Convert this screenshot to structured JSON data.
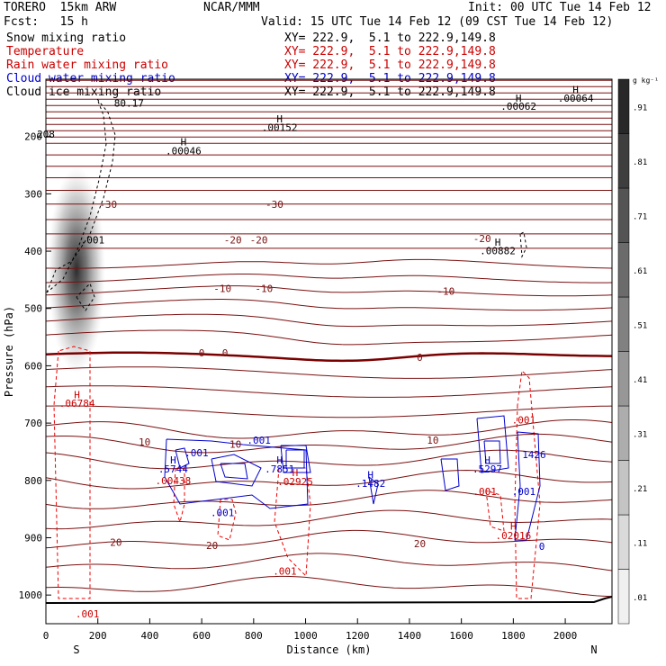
{
  "header": {
    "model": "TORERO  15km ARW",
    "org": "NCAR/MMM",
    "init": "Init: 00 UTC Tue 14 Feb 12",
    "fcst": "Fcst:   15 h",
    "valid": "Valid: 15 UTC Tue 14 Feb 12 (09 CST Tue 14 Feb 12)"
  },
  "legend": {
    "items": [
      {
        "label": "Snow mixing ratio",
        "xy": "XY= 222.9,  5.1 to 222.9,149.8",
        "color": "#000000"
      },
      {
        "label": "Temperature",
        "xy": "XY= 222.9,  5.1 to 222.9,149.8",
        "color": "#cc0000"
      },
      {
        "label": "Rain water mixing ratio",
        "xy": "XY= 222.9,  5.1 to 222.9,149.8",
        "color": "#cc0000"
      },
      {
        "label": "Cloud water mixing ratio",
        "xy": "XY= 222.9,  5.1 to 222.9,149.8",
        "color": "#0000cc"
      },
      {
        "label": "Cloud ice mixing ratio",
        "xy": "XY= 222.9,  5.1 to 222.9,149.8",
        "color": "#000000"
      }
    ]
  },
  "colorbar": {
    "unit": "g kg⁻¹",
    "levels": [
      ".01",
      ".11",
      ".21",
      ".31",
      ".41",
      ".51",
      ".61",
      ".71",
      ".81",
      ".91"
    ]
  },
  "chart_data": {
    "type": "contour",
    "xlabel": "Distance (km)",
    "ylabel": "Pressure (hPa)",
    "xlim": [
      0,
      2180
    ],
    "ylim": [
      1050,
      100
    ],
    "x_ticks": [
      0,
      200,
      400,
      600,
      800,
      1000,
      1200,
      1400,
      1600,
      1800,
      2000
    ],
    "y_ticks": [
      200,
      300,
      400,
      500,
      600,
      700,
      800,
      900,
      1000
    ],
    "x_end_labels": {
      "left": "S",
      "right": "N"
    },
    "temperature_labels": [
      {
        "x": 240,
        "p": 318,
        "text": "-30"
      },
      {
        "x": 880,
        "p": 318,
        "text": "-30"
      },
      {
        "x": 720,
        "p": 380,
        "text": "-20"
      },
      {
        "x": 820,
        "p": 380,
        "text": "-20"
      },
      {
        "x": 1680,
        "p": 378,
        "text": "-20"
      },
      {
        "x": 680,
        "p": 465,
        "text": "-10"
      },
      {
        "x": 840,
        "p": 465,
        "text": "-10"
      },
      {
        "x": 1540,
        "p": 470,
        "text": "-10"
      },
      {
        "x": 600,
        "p": 577,
        "text": "0"
      },
      {
        "x": 690,
        "p": 577,
        "text": "0"
      },
      {
        "x": 1440,
        "p": 585,
        "text": "0"
      },
      {
        "x": 380,
        "p": 733,
        "text": "10"
      },
      {
        "x": 730,
        "p": 737,
        "text": "10"
      },
      {
        "x": 1490,
        "p": 730,
        "text": "10"
      },
      {
        "x": 270,
        "p": 908,
        "text": "20"
      },
      {
        "x": 640,
        "p": 913,
        "text": "20"
      },
      {
        "x": 1440,
        "p": 910,
        "text": "20"
      }
    ],
    "annotations": [
      {
        "x": 0,
        "p": 196,
        "text": "208",
        "color": "#000000"
      },
      {
        "x": 320,
        "p": 142,
        "text": "80.17",
        "color": "#000000"
      },
      {
        "x": 180,
        "p": 380,
        "text": ".001",
        "color": "#000000"
      },
      {
        "x": 900,
        "p": 169,
        "text": "H",
        "color": "#000000"
      },
      {
        "x": 900,
        "p": 184,
        "text": ".00152",
        "color": "#000000"
      },
      {
        "x": 530,
        "p": 209,
        "text": "H",
        "color": "#000000"
      },
      {
        "x": 530,
        "p": 225,
        "text": ".00046",
        "color": "#000000"
      },
      {
        "x": 1820,
        "p": 133,
        "text": "H",
        "color": "#000000"
      },
      {
        "x": 1820,
        "p": 147,
        "text": ".00062",
        "color": "#000000"
      },
      {
        "x": 2040,
        "p": 118,
        "text": "H",
        "color": "#000000"
      },
      {
        "x": 2040,
        "p": 133,
        "text": ".00064",
        "color": "#000000"
      },
      {
        "x": 1740,
        "p": 384,
        "text": "H",
        "color": "#000000"
      },
      {
        "x": 1740,
        "p": 399,
        "text": ".00882",
        "color": "#000000"
      },
      {
        "x": 120,
        "p": 650,
        "text": "H",
        "color": "#cc0000"
      },
      {
        "x": 120,
        "p": 665,
        "text": ".06784",
        "color": "#cc0000"
      },
      {
        "x": 1840,
        "p": 694,
        "text": ".001",
        "color": "#cc0000"
      },
      {
        "x": 820,
        "p": 730,
        "text": ".001",
        "color": "#0000cc"
      },
      {
        "x": 580,
        "p": 752,
        "text": ".001",
        "color": "#0000cc"
      },
      {
        "x": 1880,
        "p": 755,
        "text": "1426",
        "color": "#0000cc"
      },
      {
        "x": 490,
        "p": 764,
        "text": "H",
        "color": "#0000cc"
      },
      {
        "x": 490,
        "p": 780,
        "text": ".5744",
        "color": "#0000cc"
      },
      {
        "x": 900,
        "p": 764,
        "text": "H",
        "color": "#0000cc"
      },
      {
        "x": 900,
        "p": 780,
        "text": ".7851",
        "color": "#0000cc"
      },
      {
        "x": 1700,
        "p": 764,
        "text": "H",
        "color": "#0000cc"
      },
      {
        "x": 1700,
        "p": 780,
        "text": ".5297",
        "color": "#0000cc"
      },
      {
        "x": 1250,
        "p": 790,
        "text": "H",
        "color": "#0000cc"
      },
      {
        "x": 1250,
        "p": 805,
        "text": ".1482",
        "color": "#0000cc"
      },
      {
        "x": 490,
        "p": 800,
        "text": ".00438",
        "color": "#cc0000"
      },
      {
        "x": 960,
        "p": 786,
        "text": "H",
        "color": "#cc0000"
      },
      {
        "x": 960,
        "p": 802,
        "text": ".02925",
        "color": "#cc0000"
      },
      {
        "x": 1690,
        "p": 819,
        "text": ".001",
        "color": "#cc0000"
      },
      {
        "x": 1840,
        "p": 819,
        "text": ".001",
        "color": "#0000cc"
      },
      {
        "x": 680,
        "p": 856,
        "text": ".001",
        "color": "#0000cc"
      },
      {
        "x": 1800,
        "p": 880,
        "text": "H",
        "color": "#cc0000"
      },
      {
        "x": 1800,
        "p": 896,
        "text": ".02016",
        "color": "#cc0000"
      },
      {
        "x": 1910,
        "p": 915,
        "text": "0",
        "color": "#0000cc"
      },
      {
        "x": 920,
        "p": 958,
        "text": ".001",
        "color": "#cc0000"
      },
      {
        "x": 160,
        "p": 1033,
        "text": ".001",
        "color": "#cc0000"
      }
    ]
  }
}
